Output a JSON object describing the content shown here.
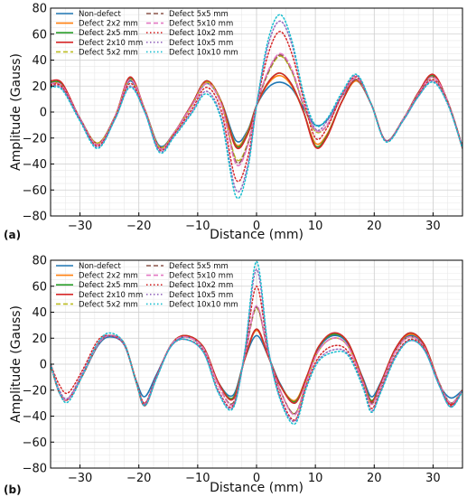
{
  "figure": {
    "colors": {
      "Non-defect": "#1f77b4",
      "Defect 2x2 mm": "#ff7f0e",
      "Defect 2x5 mm": "#2ca02c",
      "Defect 2x10 mm": "#d62728",
      "Defect 5x2 mm": "#bcbd22",
      "Defect 5x5 mm": "#8c564b",
      "Defect 5x10 mm": "#e377c2",
      "Defect 10x2 mm": "#d62728",
      "Defect 10x5 mm": "#9467bd",
      "Defect 10x10 mm": "#17becf"
    },
    "line_styles": {
      "Non-defect": "solid",
      "Defect 2x2 mm": "solid",
      "Defect 2x5 mm": "solid",
      "Defect 2x10 mm": "solid",
      "Defect 5x2 mm": "dashed",
      "Defect 5x5 mm": "dashed",
      "Defect 5x10 mm": "dashed",
      "Defect 10x2 mm": "dotted",
      "Defect 10x5 mm": "dotted",
      "Defect 10x10 mm": "dotted"
    }
  },
  "chart_data": [
    {
      "type": "line",
      "panel_label": "(a)",
      "xlabel": "Distance (mm)",
      "ylabel": "Amplitude (Gauss)",
      "xlim": [
        -35,
        35
      ],
      "ylim": [
        -80,
        80
      ],
      "xticks": [
        -30,
        -20,
        -10,
        0,
        10,
        20,
        30
      ],
      "yticks": [
        -80,
        -60,
        -40,
        -20,
        0,
        20,
        40,
        60,
        80
      ],
      "grid": true,
      "legend_position": "top-left",
      "x": [
        -35,
        -33,
        -30,
        -27,
        -24,
        -21.5,
        -19,
        -16.5,
        -14,
        -11,
        -8.5,
        -6,
        -3.5,
        -1.5,
        0,
        2,
        4,
        6,
        8,
        10,
        12,
        14.5,
        17,
        19.5,
        22,
        25,
        27.5,
        30,
        32.5,
        35
      ],
      "series": [
        {
          "name": "Non-defect",
          "values": [
            22,
            20,
            -5,
            -24,
            -3,
            24,
            2,
            -26,
            -16,
            5,
            22,
            8,
            -22,
            -14,
            5,
            19,
            23,
            18,
            3,
            -10,
            -6,
            12,
            24,
            6,
            -22,
            -5,
            14,
            27,
            8,
            -27
          ]
        },
        {
          "name": "Defect 2x2 mm",
          "values": [
            22,
            20,
            -5,
            -24,
            -3,
            25,
            2,
            -27,
            -16,
            5,
            23,
            8,
            -25,
            -15,
            5,
            22,
            28,
            20,
            0,
            -24,
            -17,
            8,
            24,
            6,
            -22,
            -5,
            14,
            27,
            8,
            -27
          ]
        },
        {
          "name": "Defect 2x5 mm",
          "values": [
            23,
            21,
            -5,
            -24,
            -3,
            26,
            2,
            -27,
            -16,
            6,
            24,
            8,
            -26,
            -16,
            5,
            23,
            30,
            21,
            0,
            -26,
            -18,
            8,
            25,
            6,
            -22,
            -5,
            15,
            28,
            8,
            -27
          ]
        },
        {
          "name": "Defect 2x10 mm",
          "values": [
            24,
            22,
            -5,
            -24,
            -3,
            27,
            2,
            -27,
            -16,
            6,
            24,
            8,
            -27,
            -17,
            5,
            23,
            30,
            21,
            0,
            -27,
            -19,
            8,
            25,
            6,
            -22,
            -5,
            15,
            29,
            8,
            -28
          ]
        },
        {
          "name": "Defect 5x2 mm",
          "values": [
            22,
            20,
            -5,
            -24,
            -3,
            25,
            2,
            -27,
            -16,
            5,
            23,
            7,
            -36,
            -24,
            5,
            30,
            43,
            31,
            5,
            -15,
            -10,
            12,
            25,
            6,
            -22,
            -5,
            14,
            27,
            8,
            -27
          ]
        },
        {
          "name": "Defect 5x5 mm",
          "values": [
            22,
            20,
            -5,
            -25,
            -3,
            25,
            2,
            -28,
            -16,
            5,
            22,
            6,
            -38,
            -25,
            5,
            31,
            44,
            32,
            5,
            -14,
            -10,
            12,
            25,
            6,
            -22,
            -5,
            14,
            27,
            8,
            -27
          ]
        },
        {
          "name": "Defect 5x10 mm",
          "values": [
            22,
            20,
            -5,
            -25,
            -3,
            25,
            2,
            -28,
            -16,
            5,
            22,
            6,
            -40,
            -26,
            5,
            32,
            45,
            33,
            6,
            -14,
            -10,
            12,
            26,
            6,
            -22,
            -5,
            14,
            27,
            8,
            -27
          ]
        },
        {
          "name": "Defect 10x2 mm",
          "values": [
            21,
            19,
            -6,
            -26,
            -4,
            22,
            1,
            -29,
            -17,
            2,
            19,
            1,
            -52,
            -35,
            5,
            45,
            62,
            45,
            10,
            -20,
            -12,
            13,
            27,
            6,
            -22,
            -6,
            13,
            25,
            7,
            -27
          ]
        },
        {
          "name": "Defect 10x5 mm",
          "values": [
            20,
            18,
            -6,
            -27,
            -5,
            20,
            0,
            -30,
            -18,
            0,
            16,
            -4,
            -60,
            -41,
            5,
            52,
            70,
            52,
            13,
            -13,
            -7,
            14,
            28,
            6,
            -22,
            -6,
            12,
            24,
            6,
            -27
          ]
        },
        {
          "name": "Defect 10x10 mm",
          "values": [
            19,
            17,
            -7,
            -28,
            -5,
            19,
            0,
            -31,
            -19,
            -1,
            14,
            -6,
            -65,
            -44,
            5,
            56,
            75,
            55,
            14,
            -10,
            -5,
            15,
            29,
            6,
            -23,
            -6,
            12,
            23,
            6,
            -28
          ]
        }
      ]
    },
    {
      "type": "line",
      "panel_label": "(b)",
      "xlabel": "Distance (mm)",
      "ylabel": "Amplitude (Gauss)",
      "xlim": [
        -35,
        35
      ],
      "ylim": [
        -80,
        80
      ],
      "xticks": [
        -30,
        -20,
        -10,
        0,
        10,
        20,
        30
      ],
      "yticks": [
        -80,
        -60,
        -40,
        -20,
        0,
        20,
        40,
        60,
        80
      ],
      "grid": true,
      "legend_position": "top-left",
      "x": [
        -35,
        -33.5,
        -32,
        -29.5,
        -27,
        -25,
        -22.5,
        -20.5,
        -19,
        -17,
        -14.5,
        -12,
        -9,
        -6.5,
        -4,
        -2,
        0,
        2,
        4,
        6.5,
        8.5,
        10.5,
        13,
        15.5,
        18,
        19.5,
        21,
        23.5,
        26,
        28.5,
        31,
        33,
        35
      ],
      "series": [
        {
          "name": "Non-defect",
          "values": [
            0,
            -22,
            -27,
            -8,
            14,
            21,
            15,
            -12,
            -25,
            -8,
            14,
            21,
            12,
            -14,
            -24,
            4,
            22,
            6,
            -15,
            -30,
            -10,
            12,
            22,
            16,
            -10,
            -25,
            -15,
            10,
            22,
            14,
            -15,
            -26,
            -20
          ]
        },
        {
          "name": "Defect 2x2 mm",
          "values": [
            0,
            -22,
            -27,
            -8,
            15,
            22,
            16,
            -13,
            -31,
            -10,
            15,
            22,
            13,
            -14,
            -26,
            4,
            26,
            6,
            -16,
            -28,
            -10,
            13,
            23,
            17,
            -11,
            -28,
            -16,
            11,
            23,
            15,
            -14,
            -30,
            -20
          ]
        },
        {
          "name": "Defect 2x5 mm",
          "values": [
            0,
            -22,
            -27,
            -8,
            15,
            22,
            16,
            -13,
            -31,
            -10,
            15,
            22,
            13,
            -14,
            -26,
            4,
            27,
            6,
            -16,
            -29,
            -10,
            13,
            23,
            17,
            -11,
            -28,
            -16,
            11,
            24,
            15,
            -14,
            -30,
            -20
          ]
        },
        {
          "name": "Defect 2x10 mm",
          "values": [
            0,
            -22,
            -27,
            -8,
            15,
            22,
            16,
            -13,
            -32,
            -10,
            15,
            22,
            13,
            -14,
            -27,
            4,
            27,
            6,
            -16,
            -30,
            -10,
            13,
            24,
            17,
            -11,
            -29,
            -16,
            11,
            24,
            15,
            -14,
            -31,
            -20
          ]
        },
        {
          "name": "Defect 5x2 mm",
          "values": [
            0,
            -22,
            -27,
            -8,
            15,
            22,
            16,
            -13,
            -30,
            -10,
            15,
            21,
            12,
            -16,
            -30,
            6,
            43,
            8,
            -20,
            -38,
            -13,
            10,
            20,
            14,
            -13,
            -30,
            -18,
            9,
            21,
            13,
            -14,
            -30,
            -20
          ]
        },
        {
          "name": "Defect 5x5 mm",
          "values": [
            0,
            -22,
            -27,
            -8,
            15,
            22,
            16,
            -13,
            -30,
            -10,
            15,
            21,
            12,
            -16,
            -30,
            6,
            44,
            8,
            -20,
            -38,
            -13,
            10,
            20,
            14,
            -13,
            -30,
            -18,
            9,
            21,
            13,
            -14,
            -30,
            -20
          ]
        },
        {
          "name": "Defect 5x10 mm",
          "values": [
            0,
            -22,
            -27,
            -8,
            15,
            22,
            16,
            -13,
            -30,
            -10,
            15,
            21,
            12,
            -16,
            -31,
            6,
            45,
            8,
            -20,
            -39,
            -13,
            10,
            20,
            14,
            -13,
            -31,
            -18,
            9,
            21,
            13,
            -14,
            -30,
            -20
          ]
        },
        {
          "name": "Defect 10x2 mm",
          "values": [
            0,
            -16,
            -22,
            -4,
            18,
            22,
            15,
            -12,
            -30,
            -9,
            14,
            19,
            10,
            -20,
            -32,
            8,
            60,
            10,
            -24,
            -43,
            -16,
            5,
            14,
            10,
            -15,
            -34,
            -21,
            6,
            19,
            12,
            -15,
            -32,
            -20
          ]
        },
        {
          "name": "Defect 10x5 mm",
          "values": [
            0,
            -20,
            -26,
            -6,
            16,
            22,
            15,
            -13,
            -31,
            -10,
            14,
            19,
            9,
            -21,
            -33,
            9,
            73,
            11,
            -26,
            -44,
            -17,
            3,
            11,
            8,
            -16,
            -36,
            -22,
            5,
            18,
            11,
            -16,
            -33,
            -20
          ]
        },
        {
          "name": "Defect 10x10 mm",
          "values": [
            0,
            -22,
            -29,
            -8,
            16,
            24,
            16,
            -13,
            -32,
            -11,
            14,
            19,
            9,
            -22,
            -34,
            10,
            79,
            12,
            -27,
            -46,
            -18,
            2,
            9,
            7,
            -17,
            -37,
            -23,
            4,
            18,
            11,
            -16,
            -33,
            -21
          ]
        }
      ]
    }
  ]
}
